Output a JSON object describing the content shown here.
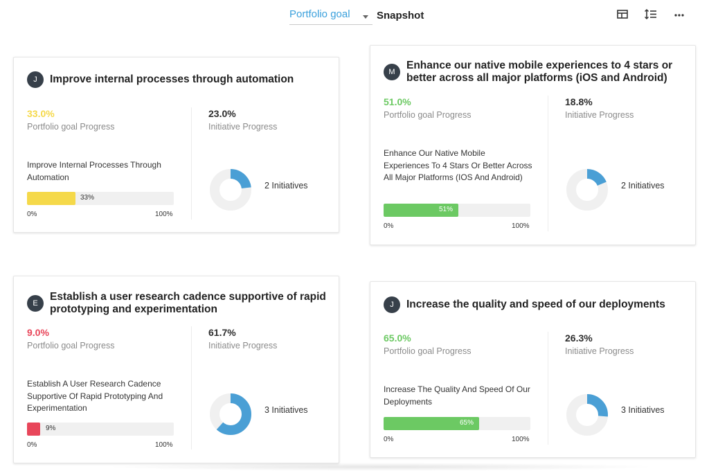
{
  "toolbar": {
    "goal_select_value": "Portfolio goal",
    "view_title": "Snapshot",
    "icons": [
      "layout-icon",
      "sort-icon",
      "more-icon"
    ]
  },
  "colors": {
    "yellow": "#f5d94a",
    "green": "#6cc963",
    "red": "#e8465a",
    "blue": "#4a9fd5",
    "donut_track": "#f0f0f0"
  },
  "labels": {
    "portfolio_progress": "Portfolio goal Progress",
    "initiative_progress": "Initiative Progress",
    "scale_min": "0%",
    "scale_max": "100%"
  },
  "cards": [
    {
      "avatar": "J",
      "title": "Improve internal processes through automation",
      "portfolio_value": "33.0%",
      "portfolio_color": "#f5d94a",
      "initiative_value": "23.0%",
      "initiative_fraction": 0.23,
      "initiative_name": "Improve Internal Processes Through Automation",
      "bar_fraction": 0.33,
      "bar_label": "33%",
      "initiatives_count": "2 Initiatives"
    },
    {
      "avatar": "M",
      "title": "Enhance our native mobile experiences to 4 stars or better across all major platforms (iOS and Android)",
      "portfolio_value": "51.0%",
      "portfolio_color": "#6cc963",
      "initiative_value": "18.8%",
      "initiative_fraction": 0.188,
      "initiative_name": "Enhance Our Native Mobile Experiences To 4 Stars Or Better Across All Major Platforms (IOS And Android)",
      "bar_fraction": 0.51,
      "bar_label": "51%",
      "initiatives_count": "2 Initiatives"
    },
    {
      "avatar": "E",
      "title": "Establish a user research cadence supportive of rapid prototyping and experimentation",
      "portfolio_value": "9.0%",
      "portfolio_color": "#e8465a",
      "initiative_value": "61.7%",
      "initiative_fraction": 0.617,
      "initiative_name": "Establish A User Research Cadence Supportive Of Rapid Prototyping And Experimentation",
      "bar_fraction": 0.09,
      "bar_label": "9%",
      "initiatives_count": "3 Initiatives"
    },
    {
      "avatar": "J",
      "title": "Increase the quality and speed of our deployments",
      "portfolio_value": "65.0%",
      "portfolio_color": "#6cc963",
      "initiative_value": "26.3%",
      "initiative_fraction": 0.263,
      "initiative_name": "Increase The Quality And Speed Of Our Deployments",
      "bar_fraction": 0.65,
      "bar_label": "65%",
      "initiatives_count": "3 Initiatives"
    }
  ]
}
